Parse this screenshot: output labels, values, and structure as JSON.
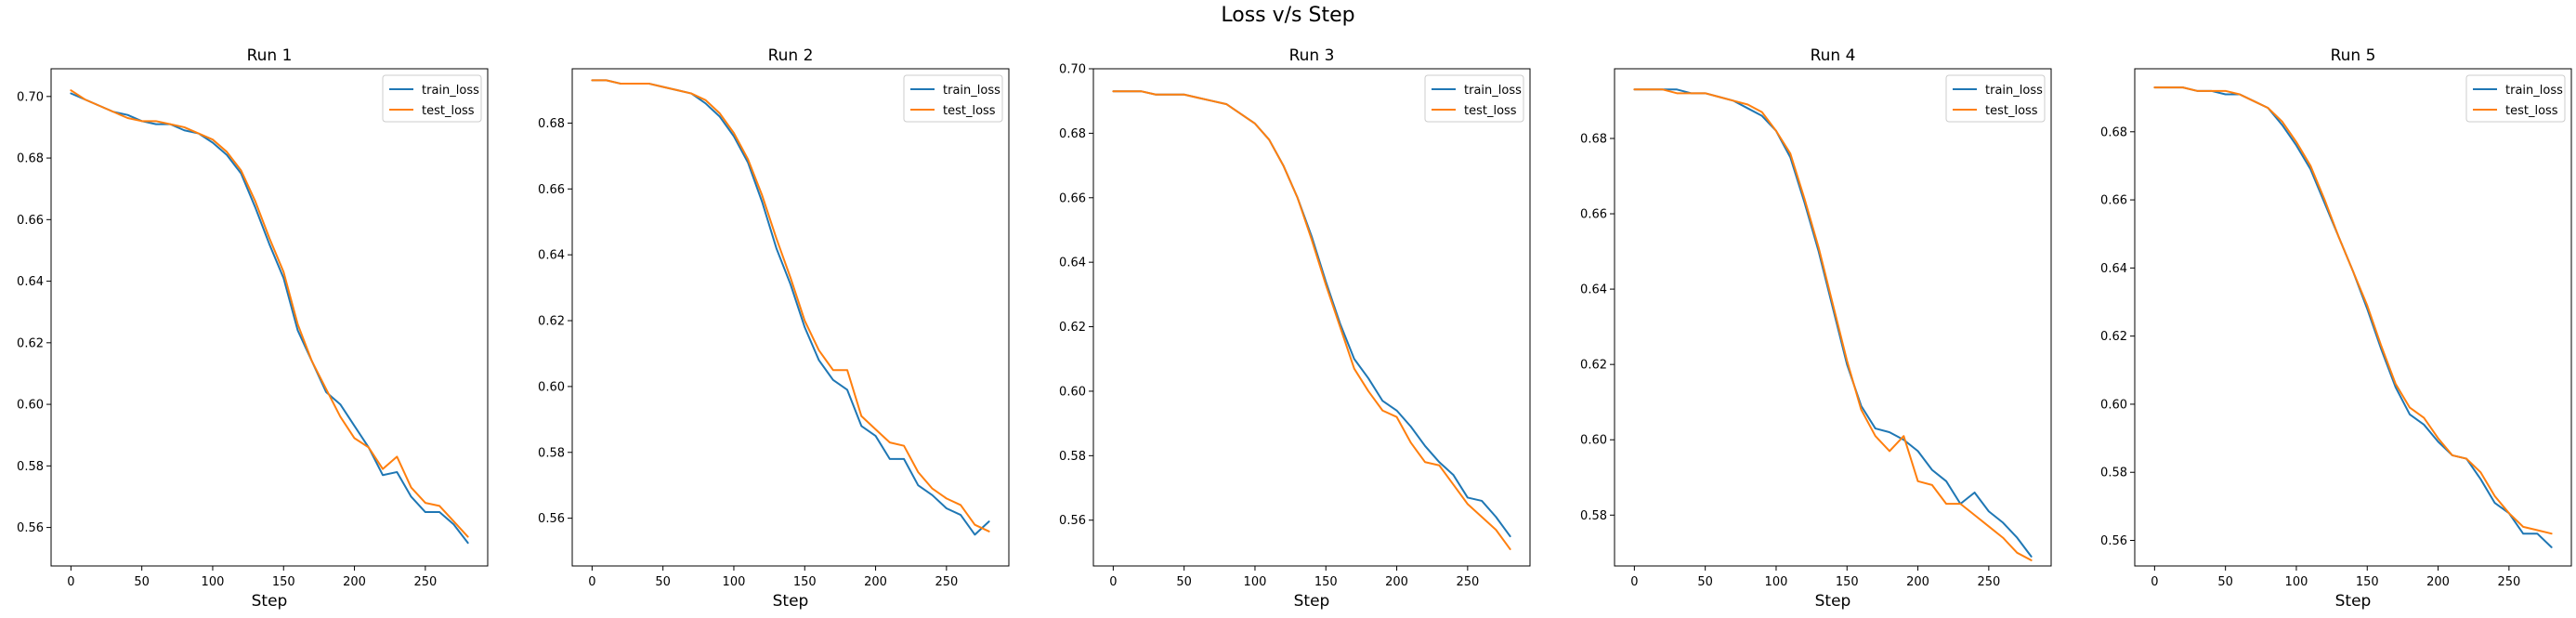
{
  "figure": {
    "title": "Loss v/s Step"
  },
  "colors": {
    "train_loss": "#1f77b4",
    "test_loss": "#ff7f0e"
  },
  "chart_data": [
    {
      "type": "line",
      "title": "Run 1",
      "xlabel": "Step",
      "ylabel": "",
      "xlim": [
        -14,
        294
      ],
      "ylim": [
        0.5475,
        0.709
      ],
      "xticks": [
        0,
        50,
        100,
        150,
        200,
        250
      ],
      "yticks": [
        0.56,
        0.58,
        0.6,
        0.62,
        0.64,
        0.66,
        0.68,
        0.7
      ],
      "ytick_decimals": 2,
      "legend": "top-right",
      "x": [
        0,
        10,
        20,
        30,
        40,
        50,
        60,
        70,
        80,
        90,
        100,
        110,
        120,
        130,
        140,
        150,
        160,
        170,
        180,
        190,
        200,
        210,
        220,
        230,
        240,
        250,
        260,
        270,
        280
      ],
      "series": [
        {
          "name": "train_loss",
          "values": [
            0.701,
            0.699,
            0.697,
            0.695,
            0.694,
            0.692,
            0.691,
            0.691,
            0.689,
            0.688,
            0.685,
            0.681,
            0.675,
            0.664,
            0.652,
            0.641,
            0.624,
            0.614,
            0.604,
            0.6,
            0.593,
            0.586,
            0.577,
            0.578,
            0.57,
            0.565,
            0.565,
            0.561,
            0.555
          ]
        },
        {
          "name": "test_loss",
          "values": [
            0.702,
            0.699,
            0.697,
            0.695,
            0.693,
            0.692,
            0.692,
            0.691,
            0.69,
            0.688,
            0.686,
            0.682,
            0.676,
            0.666,
            0.654,
            0.643,
            0.626,
            0.614,
            0.605,
            0.596,
            0.589,
            0.586,
            0.579,
            0.583,
            0.573,
            0.568,
            0.567,
            0.562,
            0.557
          ]
        }
      ]
    },
    {
      "type": "line",
      "title": "Run 2",
      "xlabel": "Step",
      "ylabel": "",
      "xlim": [
        -14,
        294
      ],
      "ylim": [
        0.5455,
        0.6965
      ],
      "xticks": [
        0,
        50,
        100,
        150,
        200,
        250
      ],
      "yticks": [
        0.56,
        0.58,
        0.6,
        0.62,
        0.64,
        0.66,
        0.68
      ],
      "ytick_decimals": 2,
      "legend": "top-right",
      "x": [
        0,
        10,
        20,
        30,
        40,
        50,
        60,
        70,
        80,
        90,
        100,
        110,
        120,
        130,
        140,
        150,
        160,
        170,
        180,
        190,
        200,
        210,
        220,
        230,
        240,
        250,
        260,
        270,
        280
      ],
      "series": [
        {
          "name": "train_loss",
          "values": [
            0.693,
            0.693,
            0.692,
            0.692,
            0.692,
            0.691,
            0.69,
            0.689,
            0.686,
            0.682,
            0.676,
            0.668,
            0.656,
            0.642,
            0.631,
            0.618,
            0.608,
            0.602,
            0.599,
            0.588,
            0.585,
            0.578,
            0.578,
            0.57,
            0.567,
            0.563,
            0.561,
            0.555,
            0.559
          ]
        },
        {
          "name": "test_loss",
          "values": [
            0.693,
            0.693,
            0.692,
            0.692,
            0.692,
            0.691,
            0.69,
            0.689,
            0.687,
            0.683,
            0.677,
            0.669,
            0.658,
            0.645,
            0.633,
            0.62,
            0.611,
            0.605,
            0.605,
            0.591,
            0.587,
            0.583,
            0.582,
            0.574,
            0.569,
            0.566,
            0.564,
            0.558,
            0.556
          ]
        }
      ]
    },
    {
      "type": "line",
      "title": "Run 3",
      "xlabel": "Step",
      "ylabel": "",
      "xlim": [
        -14,
        294
      ],
      "ylim": [
        0.5458,
        0.7
      ],
      "xticks": [
        0,
        50,
        100,
        150,
        200,
        250
      ],
      "yticks": [
        0.56,
        0.58,
        0.6,
        0.62,
        0.64,
        0.66,
        0.68,
        0.7
      ],
      "ytick_decimals": 2,
      "legend": "top-right",
      "x": [
        0,
        10,
        20,
        30,
        40,
        50,
        60,
        70,
        80,
        90,
        100,
        110,
        120,
        130,
        140,
        150,
        160,
        170,
        180,
        190,
        200,
        210,
        220,
        230,
        240,
        250,
        260,
        270,
        280
      ],
      "series": [
        {
          "name": "train_loss",
          "values": [
            0.693,
            0.693,
            0.693,
            0.692,
            0.692,
            0.692,
            0.691,
            0.69,
            0.689,
            0.686,
            0.683,
            0.678,
            0.67,
            0.66,
            0.648,
            0.634,
            0.621,
            0.61,
            0.604,
            0.597,
            0.594,
            0.589,
            0.583,
            0.578,
            0.574,
            0.567,
            0.566,
            0.561,
            0.555
          ]
        },
        {
          "name": "test_loss",
          "values": [
            0.693,
            0.693,
            0.693,
            0.692,
            0.692,
            0.692,
            0.691,
            0.69,
            0.689,
            0.686,
            0.683,
            0.678,
            0.67,
            0.66,
            0.647,
            0.633,
            0.62,
            0.607,
            0.6,
            0.594,
            0.592,
            0.584,
            0.578,
            0.577,
            0.571,
            0.565,
            0.561,
            0.557,
            0.551
          ]
        }
      ]
    },
    {
      "type": "line",
      "title": "Run 4",
      "xlabel": "Step",
      "ylabel": "",
      "xlim": [
        -14,
        294
      ],
      "ylim": [
        0.5665,
        0.6985
      ],
      "xticks": [
        0,
        50,
        100,
        150,
        200,
        250
      ],
      "yticks": [
        0.58,
        0.6,
        0.62,
        0.64,
        0.66,
        0.68
      ],
      "ytick_decimals": 2,
      "legend": "top-right",
      "x": [
        0,
        10,
        20,
        30,
        40,
        50,
        60,
        70,
        80,
        90,
        100,
        110,
        120,
        130,
        140,
        150,
        160,
        170,
        180,
        190,
        200,
        210,
        220,
        230,
        240,
        250,
        260,
        270,
        280
      ],
      "series": [
        {
          "name": "train_loss",
          "values": [
            0.693,
            0.693,
            0.693,
            0.693,
            0.692,
            0.692,
            0.691,
            0.69,
            0.688,
            0.686,
            0.682,
            0.675,
            0.663,
            0.65,
            0.635,
            0.62,
            0.609,
            0.603,
            0.602,
            0.6,
            0.597,
            0.592,
            0.589,
            0.583,
            0.586,
            0.581,
            0.578,
            0.574,
            0.569
          ]
        },
        {
          "name": "test_loss",
          "values": [
            0.693,
            0.693,
            0.693,
            0.692,
            0.692,
            0.692,
            0.691,
            0.69,
            0.689,
            0.687,
            0.682,
            0.676,
            0.664,
            0.651,
            0.636,
            0.621,
            0.608,
            0.601,
            0.597,
            0.601,
            0.589,
            0.588,
            0.583,
            0.583,
            0.58,
            0.577,
            0.574,
            0.57,
            0.568
          ]
        }
      ]
    },
    {
      "type": "line",
      "title": "Run 5",
      "xlabel": "Step",
      "ylabel": "",
      "xlim": [
        -14,
        294
      ],
      "ylim": [
        0.5525,
        0.6985
      ],
      "xticks": [
        0,
        50,
        100,
        150,
        200,
        250
      ],
      "yticks": [
        0.56,
        0.58,
        0.6,
        0.62,
        0.64,
        0.66,
        0.68
      ],
      "ytick_decimals": 2,
      "legend": "top-right",
      "x": [
        0,
        10,
        20,
        30,
        40,
        50,
        60,
        70,
        80,
        90,
        100,
        110,
        120,
        130,
        140,
        150,
        160,
        170,
        180,
        190,
        200,
        210,
        220,
        230,
        240,
        250,
        260,
        270,
        280
      ],
      "series": [
        {
          "name": "train_loss",
          "values": [
            0.693,
            0.693,
            0.693,
            0.692,
            0.692,
            0.691,
            0.691,
            0.689,
            0.687,
            0.682,
            0.676,
            0.669,
            0.659,
            0.649,
            0.639,
            0.628,
            0.616,
            0.605,
            0.597,
            0.594,
            0.589,
            0.585,
            0.584,
            0.578,
            0.571,
            0.568,
            0.562,
            0.562,
            0.558
          ]
        },
        {
          "name": "test_loss",
          "values": [
            0.693,
            0.693,
            0.693,
            0.692,
            0.692,
            0.692,
            0.691,
            0.689,
            0.687,
            0.683,
            0.677,
            0.67,
            0.66,
            0.649,
            0.639,
            0.629,
            0.617,
            0.606,
            0.599,
            0.596,
            0.59,
            0.585,
            0.584,
            0.58,
            0.573,
            0.568,
            0.564,
            0.563,
            0.562
          ]
        }
      ]
    }
  ]
}
